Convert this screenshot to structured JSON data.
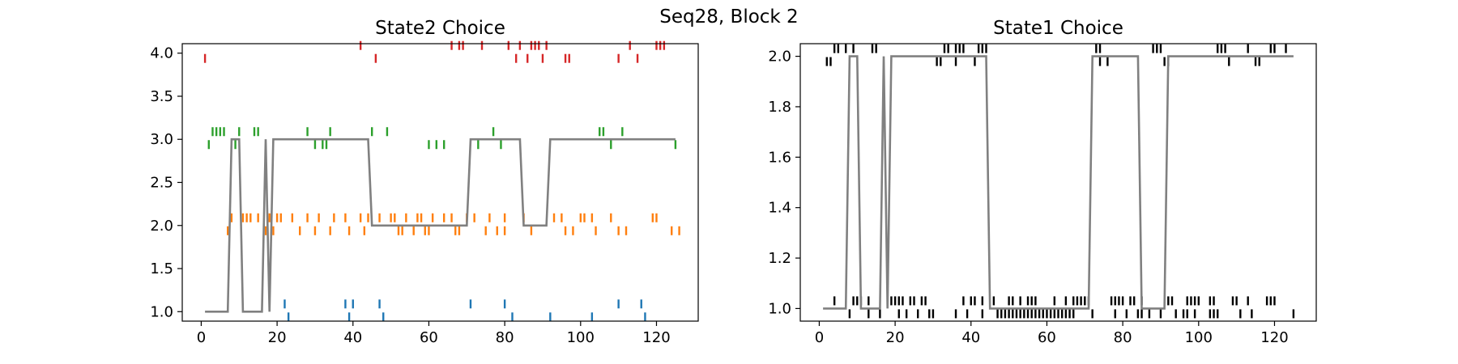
{
  "figure": {
    "suptitle": "Seq28, Block 2"
  },
  "chart_data": [
    {
      "type": "line",
      "title": "State2 Choice",
      "xlabel": "",
      "ylabel": "",
      "xlim": [
        -5,
        131
      ],
      "ylim": [
        0.89,
        4.11
      ],
      "xticks": [
        0,
        20,
        40,
        60,
        80,
        100,
        120
      ],
      "yticks": [
        1.0,
        1.5,
        2.0,
        2.5,
        3.0,
        3.5,
        4.0
      ],
      "ytick_labels": [
        "1.0",
        "1.5",
        "2.0",
        "2.5",
        "3.0",
        "3.5",
        "4.0"
      ],
      "grid": false,
      "line_color": "#808080",
      "line": {
        "x": [
          1,
          7,
          8,
          10,
          11,
          16,
          17,
          18,
          19,
          44,
          45,
          70,
          71,
          84,
          85,
          91,
          92,
          125
        ],
        "y": [
          1,
          1,
          3,
          3,
          1,
          1,
          3,
          1,
          3,
          3,
          2,
          2,
          3,
          3,
          2,
          2,
          3,
          3
        ]
      },
      "event_series": [
        {
          "color": "#1f77b4",
          "level": 1,
          "x": [
            22,
            38,
            40,
            47,
            71,
            80,
            110,
            116
          ],
          "x_offset": [
            23,
            39,
            48,
            82,
            92,
            103,
            117
          ]
        },
        {
          "color": "#ff7f0e",
          "level": 2,
          "x": [
            8,
            11,
            12,
            13,
            15,
            18,
            20,
            21,
            24,
            28,
            31,
            35,
            38,
            42,
            44,
            47,
            50,
            51,
            54,
            57,
            58,
            61,
            64,
            66,
            70,
            72,
            76,
            80,
            85,
            93,
            95,
            100,
            101,
            103,
            108,
            119,
            120
          ],
          "x_offset": [
            7,
            17,
            19,
            26,
            30,
            34,
            39,
            43,
            52,
            53,
            56,
            59,
            60,
            67,
            68,
            75,
            78,
            80,
            87,
            96,
            98,
            104,
            110,
            112,
            124,
            126
          ]
        },
        {
          "color": "#2ca02c",
          "level": 3,
          "x": [
            3,
            4,
            5,
            6,
            10,
            14,
            15,
            28,
            34,
            45,
            49,
            77,
            105,
            106,
            111
          ],
          "x_offset": [
            2,
            9,
            30,
            32,
            33,
            60,
            62,
            64,
            73,
            79,
            108,
            125
          ]
        },
        {
          "color": "#d62728",
          "level": 4,
          "x": [
            42,
            66,
            68,
            69,
            74,
            81,
            84,
            87,
            88,
            89,
            91,
            113,
            120,
            121,
            122
          ],
          "x_offset": [
            1,
            46,
            83,
            86,
            90,
            96,
            97,
            110,
            115
          ]
        }
      ]
    },
    {
      "type": "line",
      "title": "State1 Choice",
      "xlabel": "",
      "ylabel": "",
      "xlim": [
        -5,
        131
      ],
      "ylim": [
        0.95,
        2.05
      ],
      "xticks": [
        0,
        20,
        40,
        60,
        80,
        100,
        120
      ],
      "yticks": [
        1.0,
        1.2,
        1.4,
        1.6,
        1.8,
        2.0
      ],
      "ytick_labels": [
        "1.0",
        "1.2",
        "1.4",
        "1.6",
        "1.8",
        "2.0"
      ],
      "grid": false,
      "line_color": "#808080",
      "line": {
        "x": [
          1,
          7,
          8,
          10,
          11,
          16,
          17,
          18,
          19,
          44,
          45,
          71,
          72,
          84,
          85,
          91,
          92,
          125
        ],
        "y": [
          1,
          1,
          2,
          2,
          1,
          1,
          2,
          1,
          2,
          2,
          1,
          1,
          2,
          2,
          1,
          1,
          2,
          2
        ]
      },
      "event_series": [
        {
          "color": "#000000",
          "level": 2,
          "x": [
            4,
            5,
            7,
            9,
            14,
            15,
            33,
            34,
            36,
            37,
            38,
            42,
            43,
            44,
            73,
            74,
            88,
            89,
            90,
            105,
            106,
            107,
            113,
            119,
            120,
            123
          ],
          "x_offset": [
            2,
            3,
            31,
            32,
            36,
            41,
            74,
            76,
            91,
            92,
            108,
            115,
            116
          ]
        },
        {
          "color": "#000000",
          "level": 1,
          "x": [
            4,
            9,
            10,
            11,
            13,
            19,
            20,
            21,
            22,
            24,
            25,
            27,
            28,
            38,
            40,
            41,
            43,
            46,
            50,
            51,
            53,
            55,
            56,
            57,
            62,
            65,
            67,
            68,
            69,
            70,
            71,
            77,
            78,
            79,
            80,
            82,
            83,
            85,
            92,
            93,
            97,
            98,
            99,
            100,
            103,
            104,
            109,
            110,
            113,
            118,
            119,
            120
          ],
          "x_offset": [
            8,
            13,
            16,
            21,
            23,
            26,
            29,
            30,
            36,
            39,
            43,
            47,
            48,
            49,
            50,
            51,
            52,
            53,
            54,
            55,
            56,
            57,
            58,
            59,
            60,
            61,
            62,
            63,
            64,
            65,
            66,
            67,
            72,
            78,
            81,
            84,
            85,
            87,
            90,
            94,
            96,
            97,
            99,
            103,
            104,
            105,
            111,
            114,
            125
          ]
        }
      ]
    }
  ]
}
